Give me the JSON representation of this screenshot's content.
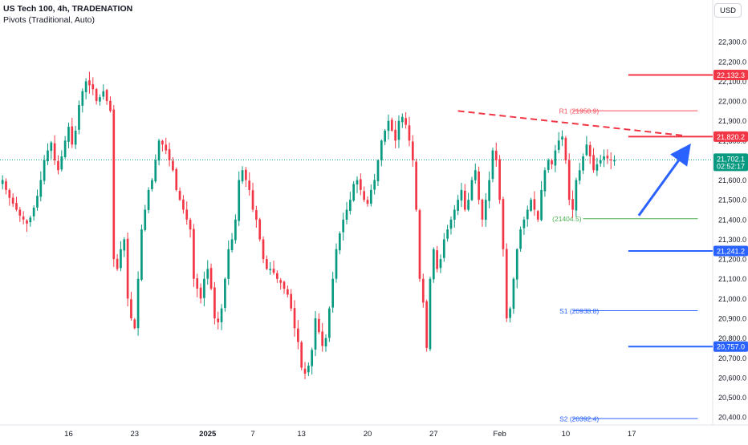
{
  "header": {
    "title": "US Tech 100, 4h, TRADENATION",
    "indicator": "Pivots (Traditional, Auto)"
  },
  "currency_button": "USD",
  "colors": {
    "up": "#089981",
    "down": "#f23645",
    "red_level": "#f23645",
    "blue_level": "#2962ff",
    "arrow": "#2962ff",
    "pivot_r": "#f7525f",
    "pivot_s": "#2962ff",
    "pivot_p": "#4caf50"
  },
  "chart_data": {
    "type": "candlestick",
    "title": "US Tech 100, 4h, TRADENATION",
    "y_ticks": [
      20400,
      20500,
      20600,
      20700,
      20800,
      20900,
      21000,
      21100,
      21200,
      21300,
      21400,
      21500,
      21600,
      21700,
      21800,
      21900,
      22000,
      22100,
      22200,
      22300
    ],
    "y_tick_labels": [
      "20,400.0",
      "20,500.0",
      "20,600.0",
      "20,700.0",
      "20,800.0",
      "20,900.0",
      "21,000.0",
      "21,100.0",
      "21,200.0",
      "21,300.0",
      "21,400.0",
      "21,500.0",
      "21,600.0",
      "21,700.0",
      "21,800.0",
      "21,900.0",
      "22,000.0",
      "22,100.0",
      "22,200.0",
      "22,300.0"
    ],
    "ylim": [
      20360,
      22390
    ],
    "x_tick_labels": [
      "16",
      "23",
      "2025",
      "7",
      "13",
      "20",
      "27",
      "Feb",
      "10",
      "17"
    ],
    "x_tick_bars": [
      19,
      38,
      59,
      72,
      86,
      105,
      124,
      143,
      162,
      181
    ],
    "total_bars": 205,
    "closes": [
      21600,
      21550,
      21510,
      21480,
      21450,
      21420,
      21400,
      21380,
      21410,
      21460,
      21520,
      21600,
      21700,
      21750,
      21790,
      21700,
      21650,
      21720,
      21800,
      21870,
      21780,
      21850,
      21980,
      22050,
      22100,
      22080,
      22060,
      22000,
      22020,
      22050,
      22000,
      21950,
      21200,
      21150,
      21250,
      21300,
      21000,
      20900,
      20850,
      21100,
      21350,
      21450,
      21550,
      21600,
      21700,
      21800,
      21780,
      21750,
      21700,
      21650,
      21550,
      21500,
      21450,
      21400,
      21350,
      21100,
      21050,
      21000,
      21100,
      21150,
      21050,
      20900,
      20880,
      20950,
      21100,
      21250,
      21300,
      21400,
      21600,
      21650,
      21600,
      21550,
      21450,
      21400,
      21300,
      21200,
      21150,
      21150,
      21130,
      21100,
      21080,
      21050,
      21020,
      20950,
      20850,
      20780,
      20650,
      20620,
      20660,
      20740,
      20900,
      20830,
      20760,
      20800,
      20950,
      21100,
      21250,
      21330,
      21400,
      21450,
      21500,
      21580,
      21600,
      21550,
      21500,
      21480,
      21550,
      21600,
      21700,
      21800,
      21850,
      21900,
      21850,
      21800,
      21900,
      21920,
      21880,
      21800,
      21700,
      21450,
      21100,
      20980,
      20750,
      21100,
      21250,
      21150,
      21200,
      21300,
      21350,
      21400,
      21450,
      21500,
      21550,
      21450,
      21500,
      21600,
      21650,
      21500,
      21400,
      21500,
      21600,
      21750,
      21700,
      21500,
      21250,
      20900,
      20950,
      21100,
      21250,
      21350,
      21400,
      21450,
      21500,
      21450,
      21400,
      21550,
      21650,
      21700,
      21680,
      21750,
      21800,
      21820,
      21700,
      21500,
      21450,
      21600,
      21650,
      21720,
      21780,
      21720,
      21650,
      21680,
      21700,
      21720,
      21710,
      21700,
      21702.1
    ],
    "current_price": 21702.1,
    "current_price_label": "21,702.1",
    "countdown": "02:52:17",
    "levels": [
      {
        "name": "resistance-22132",
        "value": 22132.3,
        "label": "22,132.3",
        "color": "#f23645"
      },
      {
        "name": "resistance-21820",
        "value": 21820.2,
        "label": "21,820.2",
        "color": "#f23645"
      },
      {
        "name": "support-21241",
        "value": 21241.2,
        "label": "21,241.2",
        "color": "#2962ff"
      },
      {
        "name": "support-20757",
        "value": 20757.0,
        "label": "20,757.0",
        "color": "#2962ff"
      }
    ],
    "pivots": [
      {
        "name": "R1",
        "value": 21950.9,
        "label": "R1 (21950.9)",
        "color": "#f7525f"
      },
      {
        "name": "P",
        "value": 21404.5,
        "label": "(21404.5)",
        "color": "#4caf50"
      },
      {
        "name": "S1",
        "value": 20938.8,
        "label": "S1 (20938.8)",
        "color": "#2962ff"
      },
      {
        "name": "S2",
        "value": 20392.4,
        "label": "S2 (20392.4)",
        "color": "#2962ff"
      }
    ],
    "trendline": {
      "from": [
        131,
        21950
      ],
      "to": [
        196,
        21825
      ]
    },
    "arrow": {
      "from": [
        183,
        21420
      ],
      "to": [
        198,
        21785
      ]
    }
  }
}
